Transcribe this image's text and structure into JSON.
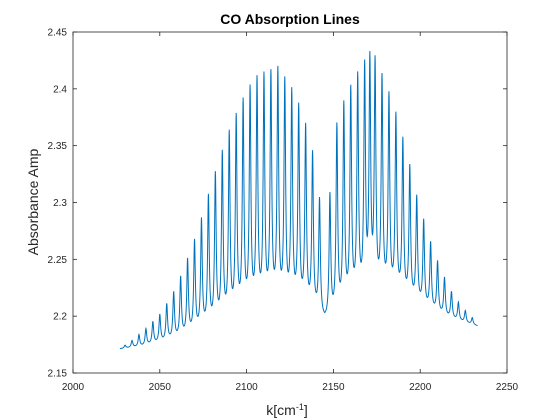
{
  "chart_data": {
    "type": "line",
    "title": "CO Absorption Lines",
    "xlabel_main": "k[cm",
    "xlabel_sup": "-1",
    "xlabel_close": "]",
    "ylabel": "Absorbance Amp",
    "xlim": [
      2000,
      2250
    ],
    "ylim": [
      2.15,
      2.45
    ],
    "xticks": [
      2000,
      2050,
      2100,
      2150,
      2200,
      2250
    ],
    "yticks": [
      2.15,
      2.2,
      2.25,
      2.3,
      2.35,
      2.4,
      2.45
    ],
    "xtick_labels": [
      "2000",
      "2050",
      "2100",
      "2150",
      "2200",
      "2250"
    ],
    "ytick_labels": [
      "2.15",
      "2.2",
      "2.25",
      "2.3",
      "2.35",
      "2.4",
      "2.45"
    ],
    "grid": false,
    "line_color": "#0072BD",
    "series": [
      {
        "x_range": [
          2027,
          2233
        ],
        "lines_description": "CO rovibrational absorption lines, P and R branches",
        "p_branch_peaks": [
          {
            "x": 2030,
            "y": 2.174
          },
          {
            "x": 2034,
            "y": 2.178
          },
          {
            "x": 2038,
            "y": 2.183
          },
          {
            "x": 2042,
            "y": 2.188
          },
          {
            "x": 2046,
            "y": 2.194
          },
          {
            "x": 2050,
            "y": 2.2
          },
          {
            "x": 2054,
            "y": 2.209
          },
          {
            "x": 2058,
            "y": 2.219
          },
          {
            "x": 2062,
            "y": 2.232
          },
          {
            "x": 2066,
            "y": 2.247
          },
          {
            "x": 2070,
            "y": 2.263
          },
          {
            "x": 2074,
            "y": 2.281
          },
          {
            "x": 2078,
            "y": 2.301
          },
          {
            "x": 2082,
            "y": 2.32
          },
          {
            "x": 2086,
            "y": 2.338
          },
          {
            "x": 2090,
            "y": 2.355
          },
          {
            "x": 2094,
            "y": 2.369
          },
          {
            "x": 2098,
            "y": 2.382
          },
          {
            "x": 2102,
            "y": 2.393
          },
          {
            "x": 2106,
            "y": 2.401
          },
          {
            "x": 2110,
            "y": 2.404
          },
          {
            "x": 2114,
            "y": 2.406
          },
          {
            "x": 2118,
            "y": 2.409
          },
          {
            "x": 2122,
            "y": 2.4
          },
          {
            "x": 2126,
            "y": 2.391
          },
          {
            "x": 2130,
            "y": 2.378
          },
          {
            "x": 2134,
            "y": 2.361
          },
          {
            "x": 2138,
            "y": 2.338
          },
          {
            "x": 2142,
            "y": 2.298
          }
        ],
        "r_branch_peaks": [
          {
            "x": 2148,
            "y": 2.302
          },
          {
            "x": 2152,
            "y": 2.362
          },
          {
            "x": 2156,
            "y": 2.38
          },
          {
            "x": 2160,
            "y": 2.393
          },
          {
            "x": 2164,
            "y": 2.404
          },
          {
            "x": 2168,
            "y": 2.411
          },
          {
            "x": 2171,
            "y": 2.416
          },
          {
            "x": 2174,
            "y": 2.415
          },
          {
            "x": 2178,
            "y": 2.403
          },
          {
            "x": 2182,
            "y": 2.388
          },
          {
            "x": 2186,
            "y": 2.371
          },
          {
            "x": 2190,
            "y": 2.35
          },
          {
            "x": 2194,
            "y": 2.327
          },
          {
            "x": 2198,
            "y": 2.301
          },
          {
            "x": 2202,
            "y": 2.281
          },
          {
            "x": 2206,
            "y": 2.262
          },
          {
            "x": 2210,
            "y": 2.246
          },
          {
            "x": 2214,
            "y": 2.232
          },
          {
            "x": 2218,
            "y": 2.22
          },
          {
            "x": 2222,
            "y": 2.211
          },
          {
            "x": 2226,
            "y": 2.204
          },
          {
            "x": 2230,
            "y": 2.198
          }
        ],
        "baseline": [
          {
            "x": 2027,
            "y": 2.171
          },
          {
            "x": 2040,
            "y": 2.173
          },
          {
            "x": 2060,
            "y": 2.179
          },
          {
            "x": 2080,
            "y": 2.188
          },
          {
            "x": 2100,
            "y": 2.201
          },
          {
            "x": 2115,
            "y": 2.207
          },
          {
            "x": 2130,
            "y": 2.206
          },
          {
            "x": 2140,
            "y": 2.2
          },
          {
            "x": 2145,
            "y": 2.192
          },
          {
            "x": 2150,
            "y": 2.196
          },
          {
            "x": 2160,
            "y": 2.209
          },
          {
            "x": 2172,
            "y": 2.217
          },
          {
            "x": 2185,
            "y": 2.215
          },
          {
            "x": 2200,
            "y": 2.207
          },
          {
            "x": 2215,
            "y": 2.198
          },
          {
            "x": 2233,
            "y": 2.191
          }
        ]
      }
    ]
  }
}
